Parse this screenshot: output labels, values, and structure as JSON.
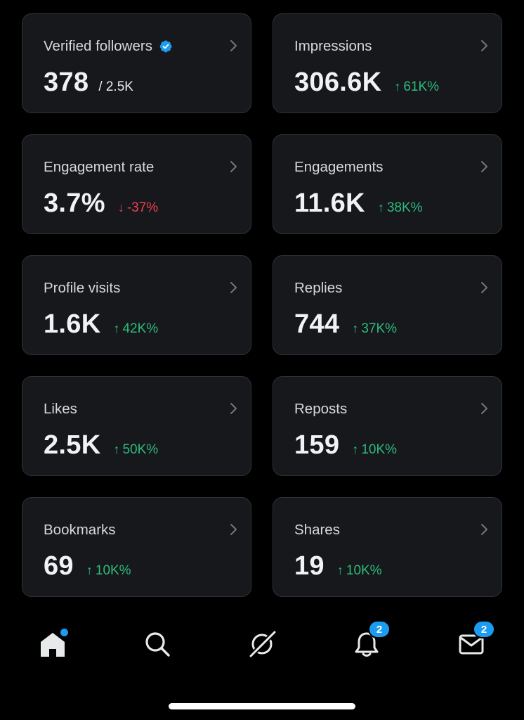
{
  "metrics": [
    {
      "title": "Verified followers",
      "value": "378",
      "sub": "/ 2.5K",
      "change": null,
      "direction": null,
      "verified": true
    },
    {
      "title": "Impressions",
      "value": "306.6K",
      "sub": null,
      "change": "61K%",
      "direction": "up"
    },
    {
      "title": "Engagement rate",
      "value": "3.7%",
      "sub": null,
      "change": "-37%",
      "direction": "down"
    },
    {
      "title": "Engagements",
      "value": "11.6K",
      "sub": null,
      "change": "38K%",
      "direction": "up"
    },
    {
      "title": "Profile visits",
      "value": "1.6K",
      "sub": null,
      "change": "42K%",
      "direction": "up"
    },
    {
      "title": "Replies",
      "value": "744",
      "sub": null,
      "change": "37K%",
      "direction": "up"
    },
    {
      "title": "Likes",
      "value": "2.5K",
      "sub": null,
      "change": "50K%",
      "direction": "up"
    },
    {
      "title": "Reposts",
      "value": "159",
      "sub": null,
      "change": "10K%",
      "direction": "up"
    },
    {
      "title": "Bookmarks",
      "value": "69",
      "sub": null,
      "change": "10K%",
      "direction": "up"
    },
    {
      "title": "Shares",
      "value": "19",
      "sub": null,
      "change": "10K%",
      "direction": "up"
    }
  ],
  "nav": {
    "notifications_badge": "2",
    "messages_badge": "2"
  },
  "colors": {
    "accent": "#1d9bf0",
    "up": "#2fba7c",
    "down": "#f0414c",
    "card_bg": "#16181c"
  }
}
